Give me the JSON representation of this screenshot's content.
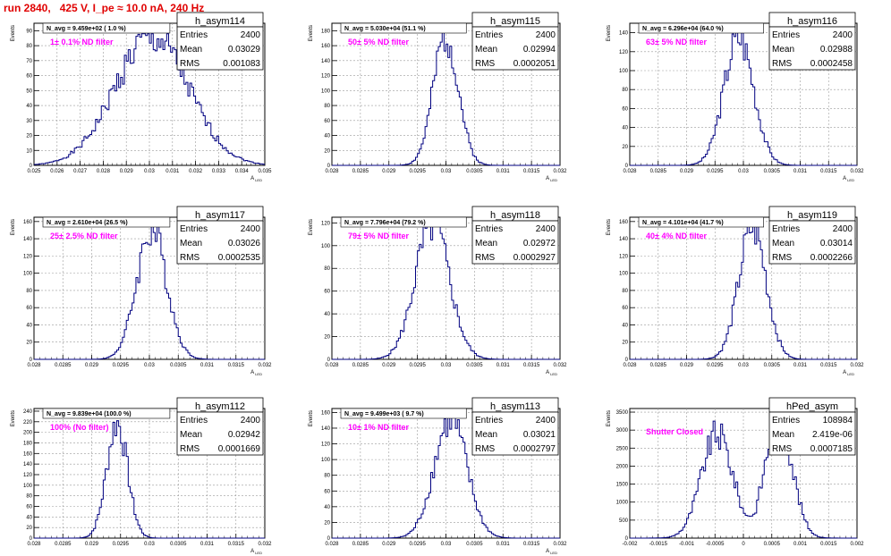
{
  "header": {
    "title": "run 2840,   425 V, I_pe ≈ 10.0 nA, 240 Hz"
  },
  "colors": {
    "histogram": "#000080",
    "annotation": "#ff00ff",
    "title": "#e00000"
  },
  "chart_data": [
    {
      "type": "histogram",
      "name": "h_asym114",
      "ylabel": "Events",
      "xlabel": "A_LED",
      "xlim": [
        0.025,
        0.035
      ],
      "ylim": [
        0,
        95
      ],
      "xticks": [
        "0.025",
        "0.026",
        "0.027",
        "0.028",
        "0.029",
        "0.03",
        "0.031",
        "0.032",
        "0.033",
        "0.034",
        "0.035"
      ],
      "yticks": [
        "0",
        "10",
        "20",
        "30",
        "40",
        "50",
        "60",
        "70",
        "80",
        "90"
      ],
      "navg": "N_avg = 9.459e+02 ( 1.0 %)",
      "filter": "1± 0.1% ND filter",
      "stats": {
        "entries": "2400",
        "mean": "0.03029",
        "rms": "0.001083"
      },
      "peak": 88
    },
    {
      "type": "histogram",
      "name": "h_asym115",
      "ylabel": "Events",
      "xlabel": "A_LED",
      "xlim": [
        0.028,
        0.032
      ],
      "ylim": [
        0,
        190
      ],
      "xticks": [
        "0.028",
        "0.0285",
        "0.029",
        "0.0295",
        "0.03",
        "0.0305",
        "0.031",
        "0.0315",
        "0.032"
      ],
      "yticks": [
        "0",
        "20",
        "40",
        "60",
        "80",
        "100",
        "120",
        "140",
        "160",
        "180"
      ],
      "navg": "N_avg = 5.030e+04 (51.1 %)",
      "filter": "50± 5% ND filter",
      "stats": {
        "entries": "2400",
        "mean": "0.02994",
        "rms": "0.0002051"
      },
      "peak": 178
    },
    {
      "type": "histogram",
      "name": "h_asym116",
      "ylabel": "Events",
      "xlabel": "A_LED",
      "xlim": [
        0.028,
        0.032
      ],
      "ylim": [
        0,
        150
      ],
      "xticks": [
        "0.028",
        "0.0285",
        "0.029",
        "0.0295",
        "0.03",
        "0.0305",
        "0.031",
        "0.0315",
        "0.032"
      ],
      "yticks": [
        "0",
        "20",
        "40",
        "60",
        "80",
        "100",
        "120",
        "140"
      ],
      "navg": "N_avg = 6.296e+04 (64.0 %)",
      "filter": "63± 5% ND filter",
      "stats": {
        "entries": "2400",
        "mean": "0.02988",
        "rms": "0.0002458"
      },
      "peak": 140
    },
    {
      "type": "histogram",
      "name": "h_asym117",
      "ylabel": "Events",
      "xlabel": "A_LED",
      "xlim": [
        0.028,
        0.032
      ],
      "ylim": [
        0,
        165
      ],
      "xticks": [
        "0.028",
        "0.0285",
        "0.029",
        "0.0295",
        "0.03",
        "0.0305",
        "0.031",
        "0.0315",
        "0.032"
      ],
      "yticks": [
        "0",
        "20",
        "40",
        "60",
        "80",
        "100",
        "120",
        "140",
        "160"
      ],
      "navg": "N_avg = 2.610e+04 (26.5 %)",
      "filter": "25± 2.5% ND filter",
      "stats": {
        "entries": "2400",
        "mean": "0.03026",
        "rms": "0.0002535"
      },
      "peak": 155
    },
    {
      "type": "histogram",
      "name": "h_asym118",
      "ylabel": "Events",
      "xlabel": "A_LED",
      "xlim": [
        0.028,
        0.032
      ],
      "ylim": [
        0,
        125
      ],
      "xticks": [
        "0.028",
        "0.0285",
        "0.029",
        "0.0295",
        "0.03",
        "0.0305",
        "0.031",
        "0.0315",
        "0.032"
      ],
      "yticks": [
        "0",
        "20",
        "40",
        "60",
        "80",
        "100",
        "120"
      ],
      "navg": "N_avg = 7.796e+04 (79.2 %)",
      "filter": "79± 5% ND filter",
      "stats": {
        "entries": "2400",
        "mean": "0.02972",
        "rms": "0.0002927"
      },
      "peak": 122
    },
    {
      "type": "histogram",
      "name": "h_asym119",
      "ylabel": "Events",
      "xlabel": "A_LED",
      "xlim": [
        0.028,
        0.032
      ],
      "ylim": [
        0,
        165
      ],
      "xticks": [
        "0.028",
        "0.0285",
        "0.029",
        "0.0295",
        "0.03",
        "0.0305",
        "0.031",
        "0.0315",
        "0.032"
      ],
      "yticks": [
        "0",
        "20",
        "40",
        "60",
        "80",
        "100",
        "120",
        "140",
        "160"
      ],
      "navg": "N_avg = 4.101e+04 (41.7 %)",
      "filter": "40± 4% ND filter",
      "stats": {
        "entries": "2400",
        "mean": "0.03014",
        "rms": "0.0002266"
      },
      "peak": 158
    },
    {
      "type": "histogram",
      "name": "h_asym112",
      "ylabel": "Events",
      "xlabel": "A_LED",
      "xlim": [
        0.028,
        0.032
      ],
      "ylim": [
        0,
        245
      ],
      "xticks": [
        "0.028",
        "0.0285",
        "0.029",
        "0.0295",
        "0.03",
        "0.0305",
        "0.031",
        "0.0315",
        "0.032"
      ],
      "yticks": [
        "0",
        "20",
        "40",
        "60",
        "80",
        "100",
        "120",
        "140",
        "160",
        "180",
        "200",
        "220",
        "240"
      ],
      "navg": "N_avg = 9.839e+04 (100.0 %)",
      "filter": "100% (No filter)",
      "stats": {
        "entries": "2400",
        "mean": "0.02942",
        "rms": "0.0001669"
      },
      "peak": 225
    },
    {
      "type": "histogram",
      "name": "h_asym113",
      "ylabel": "Events",
      "xlabel": "A_LED",
      "xlim": [
        0.028,
        0.032
      ],
      "ylim": [
        0,
        165
      ],
      "xticks": [
        "0.028",
        "0.0285",
        "0.029",
        "0.0295",
        "0.03",
        "0.0305",
        "0.031",
        "0.0315",
        "0.032"
      ],
      "yticks": [
        "0",
        "20",
        "40",
        "60",
        "80",
        "100",
        "120",
        "140",
        "160"
      ],
      "navg": "N_avg = 9.499e+03 ( 9.7 %)",
      "filter": "10± 1% ND filter",
      "stats": {
        "entries": "2400",
        "mean": "0.03021",
        "rms": "0.0002797"
      },
      "peak": 155
    },
    {
      "type": "histogram",
      "name": "hPed_asym",
      "ylabel": "Events",
      "xlabel": "",
      "xlim": [
        -0.002,
        0.002
      ],
      "ylim": [
        0,
        3600
      ],
      "xticks": [
        "-0.002",
        "-0.0015",
        "-0.001",
        "-0.0005",
        "0",
        "0.0005",
        "0.001",
        "0.0015",
        "0.002"
      ],
      "yticks": [
        "0",
        "500",
        "1000",
        "1500",
        "2000",
        "2500",
        "3000",
        "3500"
      ],
      "navg": "",
      "filter": "Shutter Closed",
      "stats": {
        "entries": "108984",
        "mean": "2.419e-06",
        "rms": "0.0007185"
      },
      "peak": 3450
    }
  ]
}
